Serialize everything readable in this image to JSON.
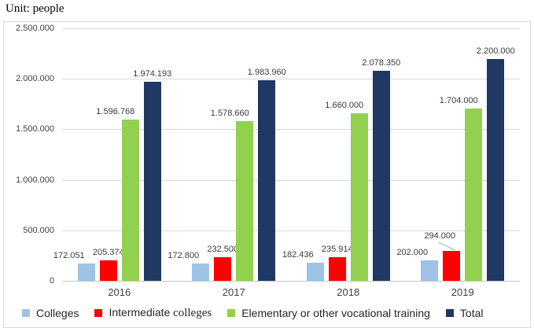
{
  "unit_label": "Unit: people",
  "colors": {
    "colleges": "#9dc3e6",
    "intermediate": "#ff0000",
    "elementary": "#92d050",
    "total": "#1f3864",
    "gridline": "#d9d9d9",
    "chart_border": "#d9d9d9",
    "label_text": "#3b3b3b"
  },
  "chart_data": {
    "type": "bar",
    "title": "",
    "unit": "Unit: people",
    "categories": [
      "2016",
      "2017",
      "2018",
      "2019"
    ],
    "series": [
      {
        "name": "Colleges",
        "color_key": "colleges",
        "values": [
          172051,
          172800,
          182436,
          202000
        ],
        "labels": [
          "172.051",
          "172.800",
          "182.436",
          "202.000"
        ]
      },
      {
        "name": "Intermediate",
        "name_serif_suffix": " colleges",
        "color_key": "intermediate",
        "values": [
          205374,
          232500,
          235914,
          294000
        ],
        "labels": [
          "205.374",
          "232.500",
          "235.914",
          "294.000"
        ]
      },
      {
        "name": "Elementary or other vocational training",
        "color_key": "elementary",
        "values": [
          1596768,
          1578660,
          1660000,
          1704000
        ],
        "labels": [
          "1.596.768",
          "1.578.660",
          "1.660.000",
          "1.704.000"
        ]
      },
      {
        "name": "Total",
        "color_key": "total",
        "values": [
          1974193,
          1983960,
          2078350,
          2200000
        ],
        "labels": [
          "1.974.193",
          "1.983.960",
          "2.078.350",
          "2.200.000"
        ]
      }
    ],
    "y_axis": {
      "min": 0,
      "max": 2500000,
      "tick_interval": 500000,
      "tick_labels": [
        "0",
        "500.000",
        "1.000.000",
        "1.500.000",
        "2.000.000",
        "2.500.000"
      ]
    },
    "xlabel": "",
    "ylabel": "",
    "grid": true,
    "legend_position": "bottom",
    "data_labels": true
  }
}
